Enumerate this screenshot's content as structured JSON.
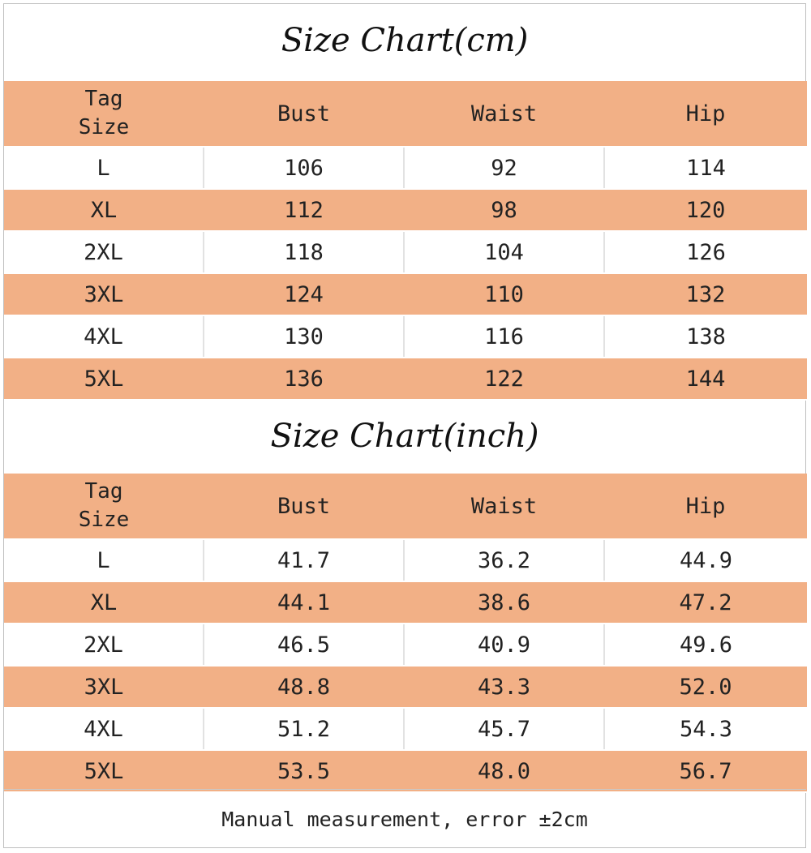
{
  "cm_chart": {
    "title": "Size Chart(cm)",
    "headers": {
      "tag_size_line1": "Tag",
      "tag_size_line2": "Size",
      "bust": "Bust",
      "waist": "Waist",
      "hip": "Hip"
    },
    "rows": [
      {
        "size": "L",
        "bust": "106",
        "waist": "92",
        "hip": "114"
      },
      {
        "size": "XL",
        "bust": "112",
        "waist": "98",
        "hip": "120"
      },
      {
        "size": "2XL",
        "bust": "118",
        "waist": "104",
        "hip": "126"
      },
      {
        "size": "3XL",
        "bust": "124",
        "waist": "110",
        "hip": "132"
      },
      {
        "size": "4XL",
        "bust": "130",
        "waist": "116",
        "hip": "138"
      },
      {
        "size": "5XL",
        "bust": "136",
        "waist": "122",
        "hip": "144"
      }
    ]
  },
  "inch_chart": {
    "title": "Size Chart(inch)",
    "headers": {
      "tag_size_line1": "Tag",
      "tag_size_line2": "Size",
      "bust": "Bust",
      "waist": "Waist",
      "hip": "Hip"
    },
    "rows": [
      {
        "size": "L",
        "bust": "41.7",
        "waist": "36.2",
        "hip": "44.9"
      },
      {
        "size": "XL",
        "bust": "44.1",
        "waist": "38.6",
        "hip": "47.2"
      },
      {
        "size": "2XL",
        "bust": "46.5",
        "waist": "40.9",
        "hip": "49.6"
      },
      {
        "size": "3XL",
        "bust": "48.8",
        "waist": "43.3",
        "hip": "52.0"
      },
      {
        "size": "4XL",
        "bust": "51.2",
        "waist": "45.7",
        "hip": "54.3"
      },
      {
        "size": "5XL",
        "bust": "53.5",
        "waist": "48.0",
        "hip": "56.7"
      }
    ]
  },
  "footer": {
    "note": "Manual measurement, error ±2cm"
  },
  "colors": {
    "header_fill": "#f2b086",
    "alt_row_fill": "#f2b086",
    "background": "#ffffff"
  }
}
